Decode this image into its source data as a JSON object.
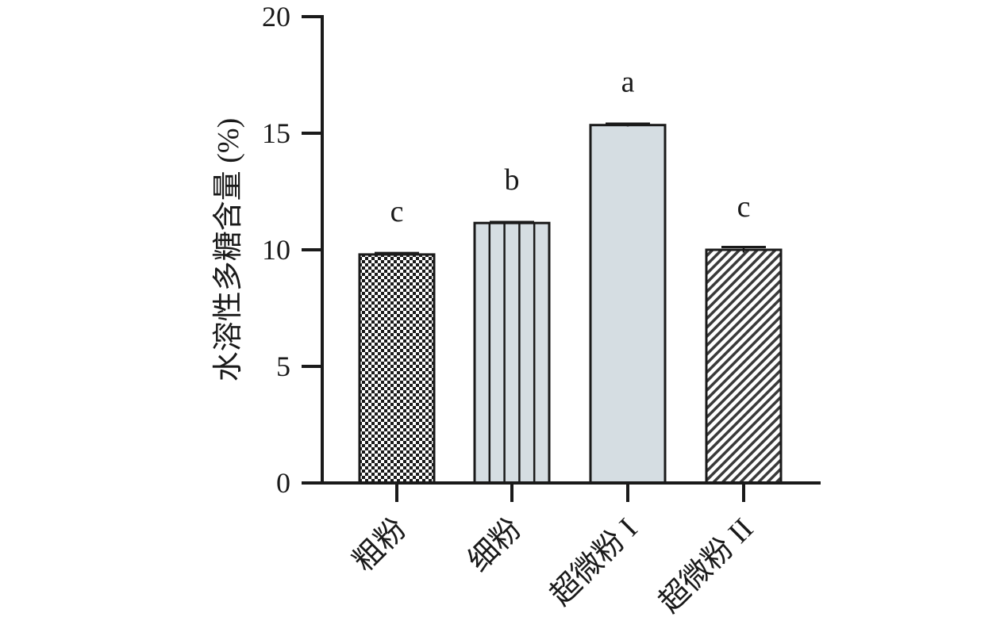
{
  "chart_data": {
    "type": "bar",
    "categories": [
      "粗粉",
      "细粉",
      "超微粉 I",
      "超微粉 II"
    ],
    "series": [
      {
        "values": [
          9.8,
          11.15,
          15.35,
          10.0
        ],
        "errors": [
          0.06,
          0.04,
          0.06,
          0.12
        ]
      }
    ],
    "significance_labels": [
      "c",
      "b",
      "a",
      "c"
    ],
    "bar_patterns": [
      "checkerboard",
      "vertical-stripes",
      "solid",
      "diagonal-stripes"
    ],
    "colors": {
      "bar_fill": "#d5dde2",
      "bar_stroke": "#1a1a1a",
      "axis": "#1a1a1a",
      "text": "#1a1a1a"
    },
    "title": "",
    "xlabel": "",
    "ylabel": "水溶性多糖含量 (%)",
    "ylim": [
      0,
      20
    ],
    "yticks": [
      0,
      5,
      10,
      15,
      20
    ],
    "grid": false,
    "legend": "none"
  }
}
